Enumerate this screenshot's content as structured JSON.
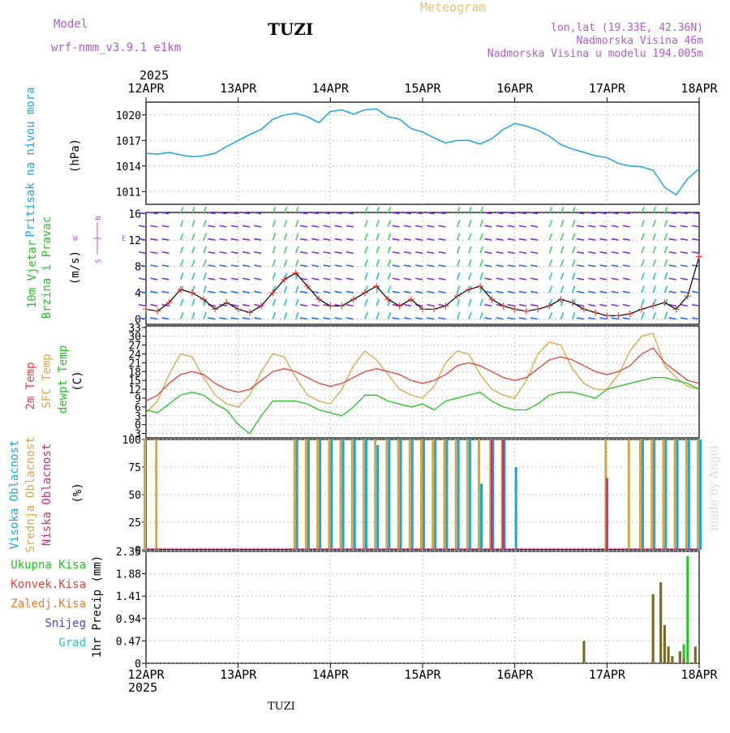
{
  "header": {
    "model_label": "Model",
    "model_name": "wrf-nmm_v3.9.1  e1km",
    "station": "TUZI",
    "product": "Meteogram",
    "coords": "lon,lat (19.33E, 42.36N)",
    "elevation": "Nadmorska Visina 46m",
    "model_elevation": "Nadmorska Visina u modelu 194.005m"
  },
  "footer": {
    "station": "TUZI",
    "credit": "made by Angel"
  },
  "time_axis": {
    "year": "2025",
    "ticks": [
      "12APR",
      "13APR",
      "14APR",
      "15APR",
      "16APR",
      "17APR",
      "18APR"
    ]
  },
  "colors": {
    "pressure": "#1ca6e0",
    "temp2m": "#e8403a",
    "sfctemp": "#d9a640",
    "dewpt": "#22c422",
    "high": "#1ca6e0",
    "mid": "#d9a640",
    "low": "#d42a7c",
    "total": "#22c422",
    "conv": "#e8403a",
    "frozen": "#e87a2a",
    "snow": "#4444dd",
    "hail": "#22c4c4",
    "wind_purple": "#8a2be2",
    "wind_blue": "#2d6ee8",
    "wind_cyan": "#20c4c4",
    "wind_green": "#40d060",
    "wind_yellow": "#c8e040",
    "speed_line": "#000000",
    "speed_marks": "#e8403a"
  },
  "panels": {
    "pressure": {
      "labels": [
        "Pritisak na nivou mora"
      ],
      "unit": "(hPa)",
      "ticks": [
        "1020",
        "1017",
        "1014",
        "1011"
      ]
    },
    "wind": {
      "labels": [
        "10m Vjetar",
        "Brzina i Pravac"
      ],
      "unit": "(m/s)",
      "ticks": [
        "16",
        "12",
        "8",
        "4",
        "0"
      ],
      "compass": [
        "N",
        "S",
        "W",
        "E"
      ]
    },
    "temp": {
      "labels": [
        "2m Temp",
        "SFC Temp",
        "dewpt Temp"
      ],
      "unit": "(C)",
      "ticks": [
        "33",
        "30",
        "27",
        "24",
        "21",
        "18",
        "15",
        "12",
        "9",
        "6",
        "3",
        "0",
        "-3"
      ]
    },
    "cloud": {
      "labels": [
        "Visoka Oblacnost",
        "Srednja Oblacnost",
        "Niska Oblacnost"
      ],
      "unit": "(%)",
      "ticks": [
        "100",
        "75",
        "50",
        "25",
        "0"
      ]
    },
    "precip": {
      "legend": [
        "Ukupna Kisa",
        "Konvek.Kisa",
        "Zaledj.Kisa",
        "Snijeg",
        "Grad"
      ],
      "unit": "1hr Precip (mm)",
      "ticks": [
        "2.35",
        "1.88",
        "1.41",
        "0.94",
        "0.47",
        "0"
      ]
    }
  },
  "chart_data": [
    {
      "type": "line",
      "title": "",
      "ylabel": "(hPa)",
      "ylim": [
        1009.5,
        1021.5
      ],
      "x": [
        "04-12 00",
        "04-12 03",
        "04-12 06",
        "04-12 09",
        "04-12 12",
        "04-12 15",
        "04-12 18",
        "04-12 21",
        "04-13 00",
        "04-13 03",
        "04-13 06",
        "04-13 09",
        "04-13 12",
        "04-13 15",
        "04-13 18",
        "04-13 21",
        "04-14 00",
        "04-14 03",
        "04-14 06",
        "04-14 09",
        "04-14 12",
        "04-14 15",
        "04-14 18",
        "04-14 21",
        "04-15 00",
        "04-15 03",
        "04-15 06",
        "04-15 09",
        "04-15 12",
        "04-15 15",
        "04-15 18",
        "04-15 21",
        "04-16 00",
        "04-16 03",
        "04-16 06",
        "04-16 09",
        "04-16 12",
        "04-16 15",
        "04-16 18",
        "04-16 21",
        "04-17 00",
        "04-17 03",
        "04-17 06",
        "04-17 09",
        "04-17 12",
        "04-17 15",
        "04-17 18",
        "04-17 21",
        "04-18 00"
      ],
      "series": [
        {
          "name": "Pritisak na nivou mora",
          "values": [
            1015.5,
            1015.4,
            1015.6,
            1015.3,
            1015.1,
            1015.2,
            1015.5,
            1016.3,
            1017.0,
            1017.7,
            1018.3,
            1019.5,
            1020.0,
            1020.2,
            1019.8,
            1019.1,
            1020.4,
            1020.6,
            1020.1,
            1020.6,
            1020.7,
            1019.8,
            1019.5,
            1018.4,
            1018.0,
            1017.3,
            1016.7,
            1017.0,
            1017.0,
            1016.6,
            1017.2,
            1018.3,
            1019.0,
            1018.7,
            1018.2,
            1017.5,
            1016.5,
            1016.0,
            1015.6,
            1015.2,
            1015.0,
            1014.3,
            1014.0,
            1013.9,
            1013.5,
            1011.5,
            1010.6,
            1012.5,
            1013.7
          ]
        }
      ]
    },
    {
      "type": "line",
      "title": "",
      "ylabel": "(m/s)",
      "ylim": [
        -0.8,
        16.2
      ],
      "x": [
        "04-12 00",
        "04-12 03",
        "04-12 06",
        "04-12 09",
        "04-12 12",
        "04-12 15",
        "04-12 18",
        "04-12 21",
        "04-13 00",
        "04-13 03",
        "04-13 06",
        "04-13 09",
        "04-13 12",
        "04-13 15",
        "04-13 18",
        "04-13 21",
        "04-14 00",
        "04-14 03",
        "04-14 06",
        "04-14 09",
        "04-14 12",
        "04-14 15",
        "04-14 18",
        "04-14 21",
        "04-15 00",
        "04-15 03",
        "04-15 06",
        "04-15 09",
        "04-15 12",
        "04-15 15",
        "04-15 18",
        "04-15 21",
        "04-16 00",
        "04-16 03",
        "04-16 06",
        "04-16 09",
        "04-16 12",
        "04-16 15",
        "04-16 18",
        "04-16 21",
        "04-17 00",
        "04-17 03",
        "04-17 06",
        "04-17 09",
        "04-17 12",
        "04-17 15",
        "04-17 18",
        "04-17 21",
        "04-18 00"
      ],
      "series": [
        {
          "name": "Brzina",
          "values": [
            1.5,
            1.2,
            2.5,
            4.5,
            4.0,
            3.0,
            1.5,
            2.5,
            1.5,
            1.0,
            2.0,
            4.0,
            6.0,
            7.0,
            5.0,
            3.0,
            2.0,
            2.0,
            3.0,
            4.0,
            5.0,
            3.0,
            2.0,
            3.0,
            1.5,
            1.5,
            2.0,
            3.5,
            4.5,
            5.0,
            3.0,
            2.0,
            1.5,
            1.2,
            1.5,
            2.0,
            3.0,
            2.5,
            1.5,
            1.0,
            0.5,
            0.5,
            0.8,
            1.5,
            2.0,
            2.5,
            1.5,
            3.5,
            9.5
          ]
        }
      ],
      "direction_rows": [
        0,
        2,
        4,
        6,
        8,
        10,
        12,
        14,
        16
      ]
    },
    {
      "type": "line",
      "title": "",
      "ylabel": "(C)",
      "ylim": [
        -4.5,
        33.5
      ],
      "x": [
        "04-12 00",
        "04-12 03",
        "04-12 06",
        "04-12 09",
        "04-12 12",
        "04-12 15",
        "04-12 18",
        "04-12 21",
        "04-13 00",
        "04-13 03",
        "04-13 06",
        "04-13 09",
        "04-13 12",
        "04-13 15",
        "04-13 18",
        "04-13 21",
        "04-14 00",
        "04-14 03",
        "04-14 06",
        "04-14 09",
        "04-14 12",
        "04-14 15",
        "04-14 18",
        "04-14 21",
        "04-15 00",
        "04-15 03",
        "04-15 06",
        "04-15 09",
        "04-15 12",
        "04-15 15",
        "04-15 18",
        "04-15 21",
        "04-16 00",
        "04-16 03",
        "04-16 06",
        "04-16 09",
        "04-16 12",
        "04-16 15",
        "04-16 18",
        "04-16 21",
        "04-17 00",
        "04-17 03",
        "04-17 06",
        "04-17 09",
        "04-17 12",
        "04-17 15",
        "04-17 18",
        "04-17 21",
        "04-18 00"
      ],
      "series": [
        {
          "name": "2m Temp",
          "values": [
            8,
            10,
            14,
            17,
            18,
            17,
            14,
            12,
            11,
            12,
            15,
            18,
            19,
            18,
            16,
            14,
            13,
            14,
            16,
            18,
            19,
            18,
            17,
            15,
            14,
            15,
            17,
            20,
            21,
            20,
            18,
            16,
            15,
            16,
            19,
            22,
            23,
            22,
            20,
            18,
            17,
            18,
            20,
            24,
            26,
            21,
            18,
            15,
            14
          ]
        },
        {
          "name": "SFC Temp",
          "values": [
            4,
            8,
            17,
            24,
            23,
            16,
            10,
            7,
            6,
            10,
            18,
            24,
            23,
            16,
            10,
            8,
            7,
            12,
            20,
            25,
            22,
            17,
            12,
            10,
            9,
            13,
            21,
            25,
            24,
            17,
            12,
            10,
            9,
            15,
            24,
            28,
            27,
            19,
            14,
            12,
            12,
            17,
            25,
            30,
            31,
            20,
            16,
            13,
            12
          ]
        },
        {
          "name": "dewpt Temp",
          "values": [
            5,
            4,
            7,
            10,
            11,
            10,
            7,
            5,
            0,
            -3,
            3,
            8,
            8,
            8,
            7,
            5,
            4,
            3,
            6,
            10,
            10,
            8,
            7,
            6,
            7,
            5,
            8,
            9,
            10,
            11,
            8,
            6,
            5,
            5,
            7,
            10,
            11,
            11,
            10,
            9,
            12,
            13,
            14,
            15,
            16,
            16,
            15,
            14,
            12
          ]
        }
      ]
    },
    {
      "type": "bar",
      "title": "",
      "ylabel": "(%)",
      "ylim": [
        0,
        100
      ],
      "x": [
        "04-12 00",
        "04-12 03",
        "04-12 06",
        "04-12 09",
        "04-12 12",
        "04-12 15",
        "04-12 18",
        "04-12 21",
        "04-13 00",
        "04-13 03",
        "04-13 06",
        "04-13 09",
        "04-13 12",
        "04-13 15",
        "04-13 18",
        "04-13 21",
        "04-14 00",
        "04-14 03",
        "04-14 06",
        "04-14 09",
        "04-14 12",
        "04-14 15",
        "04-14 18",
        "04-14 21",
        "04-15 00",
        "04-15 03",
        "04-15 06",
        "04-15 09",
        "04-15 12",
        "04-15 15",
        "04-15 18",
        "04-15 21",
        "04-16 00",
        "04-16 03",
        "04-16 06",
        "04-16 09",
        "04-16 12",
        "04-16 15",
        "04-16 18",
        "04-16 21",
        "04-17 00",
        "04-17 03",
        "04-17 06",
        "04-17 09",
        "04-17 12",
        "04-17 15",
        "04-17 18",
        "04-17 21",
        "04-18 00"
      ],
      "series": [
        {
          "name": "Visoka Oblacnost",
          "values": [
            0,
            0,
            0,
            0,
            0,
            0,
            0,
            0,
            0,
            0,
            0,
            0,
            0,
            100,
            100,
            100,
            100,
            100,
            100,
            100,
            95,
            100,
            100,
            100,
            100,
            100,
            100,
            100,
            100,
            60,
            100,
            100,
            75,
            0,
            0,
            0,
            0,
            0,
            0,
            0,
            0,
            0,
            0,
            100,
            100,
            100,
            100,
            100,
            100
          ]
        },
        {
          "name": "Srednja Oblacnost",
          "values": [
            100,
            100,
            0,
            0,
            0,
            0,
            0,
            0,
            0,
            0,
            0,
            0,
            0,
            100,
            100,
            100,
            100,
            100,
            100,
            100,
            100,
            100,
            100,
            100,
            100,
            100,
            100,
            100,
            100,
            100,
            100,
            100,
            0,
            0,
            0,
            0,
            0,
            0,
            0,
            0,
            100,
            0,
            100,
            100,
            100,
            100,
            100,
            100,
            100
          ]
        },
        {
          "name": "Niska Oblacnost",
          "values": [
            0,
            0,
            0,
            0,
            0,
            0,
            0,
            0,
            0,
            0,
            0,
            0,
            0,
            0,
            0,
            0,
            0,
            0,
            0,
            0,
            0,
            0,
            0,
            0,
            0,
            0,
            0,
            0,
            0,
            0,
            100,
            100,
            0,
            0,
            0,
            0,
            0,
            0,
            0,
            0,
            65,
            0,
            0,
            0,
            0,
            0,
            0,
            0,
            0
          ]
        }
      ]
    },
    {
      "type": "bar",
      "title": "",
      "ylabel": "1hr Precip (mm)",
      "ylim": [
        0,
        2.35
      ],
      "x": [
        "04-16 18",
        "04-17 12",
        "04-17 14",
        "04-17 15",
        "04-17 16",
        "04-17 17",
        "04-17 19",
        "04-17 20",
        "04-17 21",
        "04-17 22",
        "04-17 23"
      ],
      "series": [
        {
          "name": "Ukupna Kisa",
          "values": [
            0.47,
            1.45,
            1.7,
            0.8,
            0.35,
            0.15,
            0.25,
            0.4,
            2.25,
            0,
            0.35
          ]
        },
        {
          "name": "Konvek.Kisa",
          "values": [
            0.47,
            1.45,
            1.7,
            0.8,
            0.35,
            0.15,
            0.25,
            0.1,
            0,
            0,
            0.35
          ]
        },
        {
          "name": "Zaledj.Kisa",
          "values": [
            0,
            0,
            0,
            0,
            0,
            0,
            0,
            0,
            0,
            0,
            0
          ]
        },
        {
          "name": "Snijeg",
          "values": [
            0,
            0,
            0,
            0,
            0,
            0,
            0,
            0,
            0,
            0,
            0
          ]
        },
        {
          "name": "Grad",
          "values": [
            0,
            0,
            0,
            0,
            0,
            0,
            0,
            0,
            0,
            0,
            0
          ]
        }
      ]
    }
  ]
}
